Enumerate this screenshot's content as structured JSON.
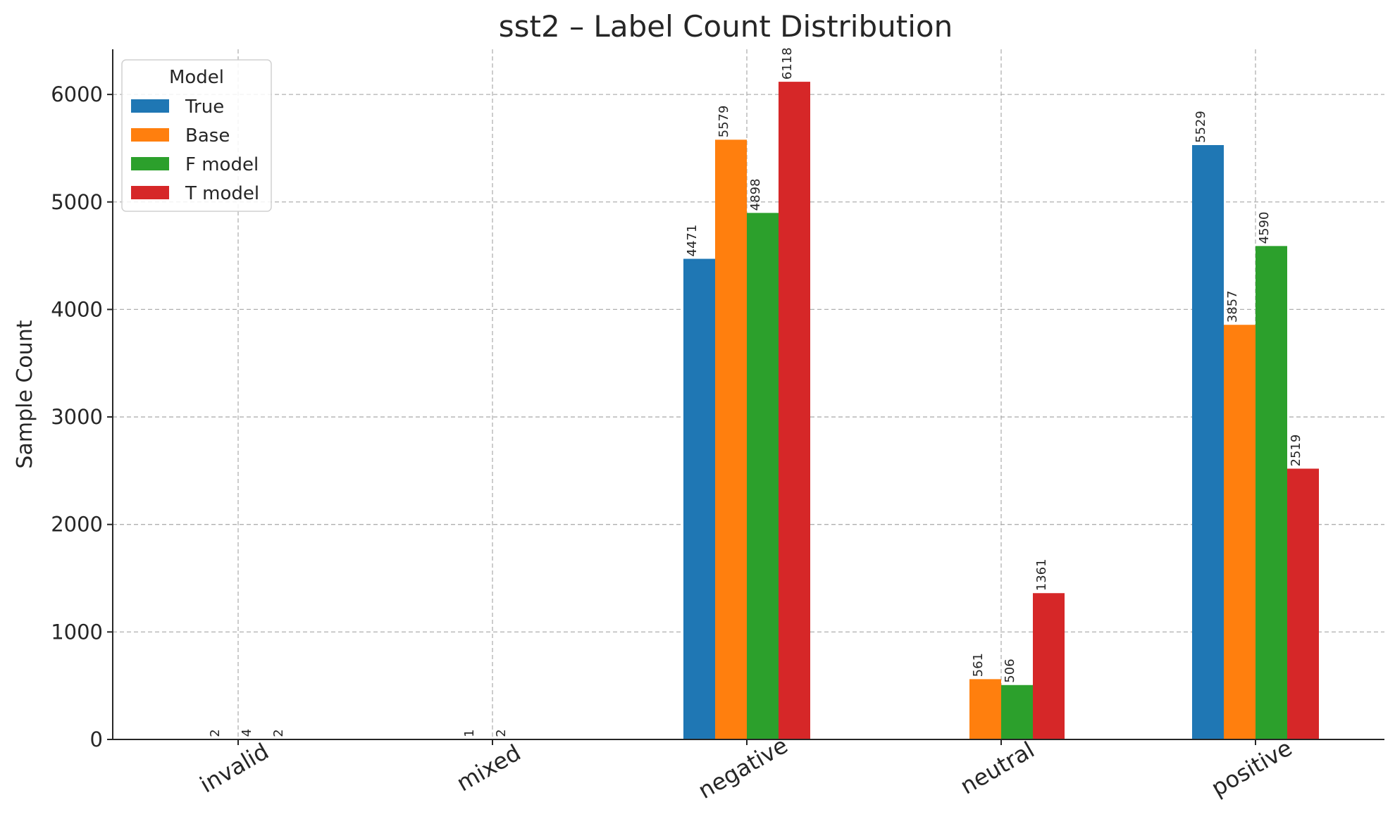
{
  "chart_data": {
    "type": "bar",
    "title": "sst2 – Label Count Distribution",
    "xlabel": "",
    "ylabel": "Sample Count",
    "categories": [
      "invalid",
      "mixed",
      "negative",
      "neutral",
      "positive"
    ],
    "series": [
      {
        "name": "True",
        "color": "#1f77b4",
        "values": [
          0,
          0,
          4471,
          0,
          5529
        ]
      },
      {
        "name": "Base",
        "color": "#ff7f0e",
        "values": [
          2,
          1,
          5579,
          561,
          3857
        ]
      },
      {
        "name": "F model",
        "color": "#2ca02c",
        "values": [
          4,
          2,
          4898,
          506,
          4590
        ]
      },
      {
        "name": "T model",
        "color": "#d62728",
        "values": [
          2,
          0,
          6118,
          1361,
          2519
        ]
      }
    ],
    "ylim": [
      0,
      6420
    ],
    "yticks": [
      0,
      1000,
      2000,
      3000,
      4000,
      5000,
      6000
    ],
    "grid": true,
    "legend": {
      "title": "Model",
      "placement": "top-left"
    }
  }
}
